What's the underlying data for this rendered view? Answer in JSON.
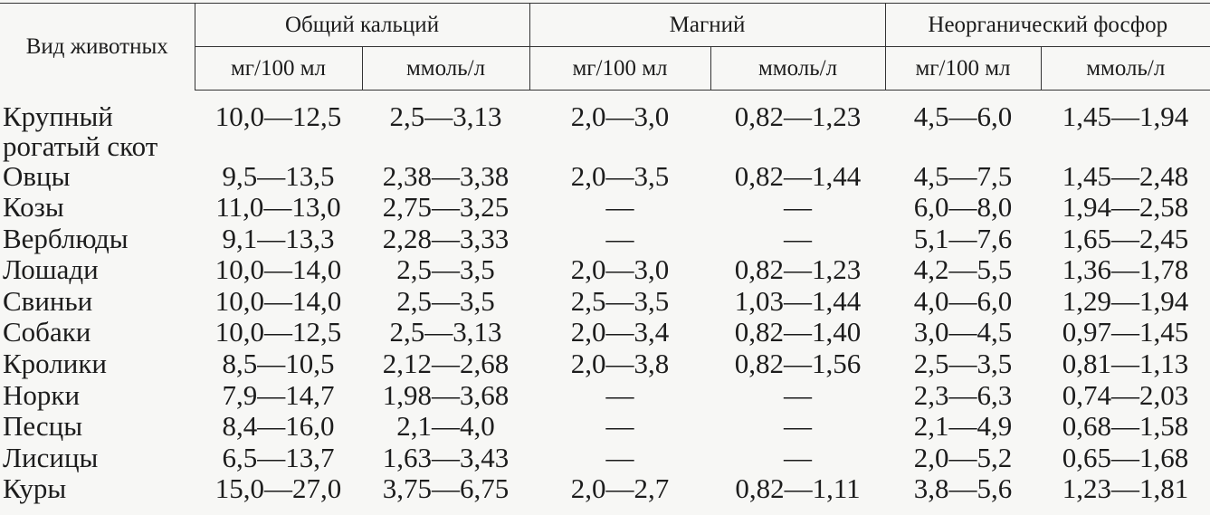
{
  "table": {
    "header": {
      "corner": "Вид животных",
      "groups": [
        "Общий кальций",
        "Магний",
        "Неорганический фосфор"
      ],
      "units": [
        "мг/100 мл",
        "ммоль/л",
        "мг/100 мл",
        "ммоль/л",
        "мг/100 мл",
        "ммоль/л"
      ]
    },
    "rows": [
      [
        "Крупный рогатый скот",
        "10,0—12,5",
        "2,5—3,13",
        "2,0—3,0",
        "0,82—1,23",
        "4,5—6,0",
        "1,45—1,94"
      ],
      [
        "Овцы",
        "9,5—13,5",
        "2,38—3,38",
        "2,0—3,5",
        "0,82—1,44",
        "4,5—7,5",
        "1,45—2,48"
      ],
      [
        "Козы",
        "11,0—13,0",
        "2,75—3,25",
        "—",
        "—",
        "6,0—8,0",
        "1,94—2,58"
      ],
      [
        "Верблюды",
        "9,1—13,3",
        "2,28—3,33",
        "—",
        "—",
        "5,1—7,6",
        "1,65—2,45"
      ],
      [
        "Лошади",
        "10,0—14,0",
        "2,5—3,5",
        "2,0—3,0",
        "0,82—1,23",
        "4,2—5,5",
        "1,36—1,78"
      ],
      [
        "Свиньи",
        "10,0—14,0",
        "2,5—3,5",
        "2,5—3,5",
        "1,03—1,44",
        "4,0—6,0",
        "1,29—1,94"
      ],
      [
        "Собаки",
        "10,0—12,5",
        "2,5—3,13",
        "2,0—3,4",
        "0,82—1,40",
        "3,0—4,5",
        "0,97—1,45"
      ],
      [
        "Кролики",
        "8,5—10,5",
        "2,12—2,68",
        "2,0—3,8",
        "0,82—1,56",
        "2,5—3,5",
        "0,81—1,13"
      ],
      [
        "Норки",
        "7,9—14,7",
        "1,98—3,68",
        "—",
        "—",
        "2,3—6,3",
        "0,74—2,03"
      ],
      [
        "Песцы",
        "8,4—16,0",
        "2,1—4,0",
        "—",
        "—",
        "2,1—4,9",
        "0,68—1,58"
      ],
      [
        "Лисицы",
        "6,5—13,7",
        "1,63—3,43",
        "—",
        "—",
        "2,0—5,2",
        "0,65—1,68"
      ],
      [
        "Куры",
        "15,0—27,0",
        "3,75—6,75",
        "2,0—2,7",
        "0,82—1,11",
        "3,8—5,6",
        "1,23—1,81"
      ]
    ]
  }
}
